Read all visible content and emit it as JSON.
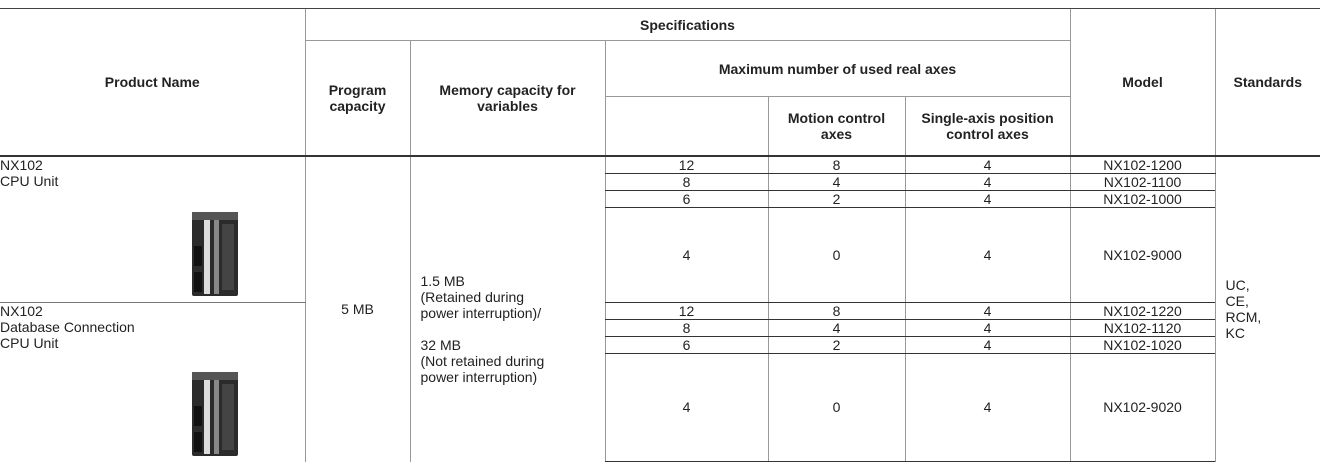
{
  "header": {
    "product_name": "Product Name",
    "specifications": "Specifications",
    "program_capacity": "Program capacity",
    "memory_capacity": "Memory capacity for variables",
    "max_axes": "Maximum number of used real axes",
    "motion_axes": "Motion control axes",
    "single_axes": "Single-axis position control axes",
    "model": "Model",
    "standards": "Standards"
  },
  "program_capacity": "5 MB",
  "memory_lines": [
    "1.5 MB",
    "(Retained during",
    "power interruption)/",
    "32 MB",
    "(Not retained during",
    "power interruption)"
  ],
  "standards_lines": [
    "UC,",
    "CE,",
    "RCM,",
    "KC"
  ],
  "products": [
    {
      "name_lines": [
        "NX102",
        "CPU Unit"
      ],
      "rows": [
        {
          "total": 12,
          "motion": 8,
          "single": 4,
          "model": "NX102-1200"
        },
        {
          "total": 8,
          "motion": 4,
          "single": 4,
          "model": "NX102-1100"
        },
        {
          "total": 6,
          "motion": 2,
          "single": 4,
          "model": "NX102-1000"
        },
        {
          "total": 4,
          "motion": 0,
          "single": 4,
          "model": "NX102-9000"
        }
      ]
    },
    {
      "name_lines": [
        "NX102",
        "Database Connection",
        "CPU Unit"
      ],
      "rows": [
        {
          "total": 12,
          "motion": 8,
          "single": 4,
          "model": "NX102-1220"
        },
        {
          "total": 8,
          "motion": 4,
          "single": 4,
          "model": "NX102-1120"
        },
        {
          "total": 6,
          "motion": 2,
          "single": 4,
          "model": "NX102-1020"
        },
        {
          "total": 4,
          "motion": 0,
          "single": 4,
          "model": "NX102-9020"
        }
      ]
    }
  ]
}
